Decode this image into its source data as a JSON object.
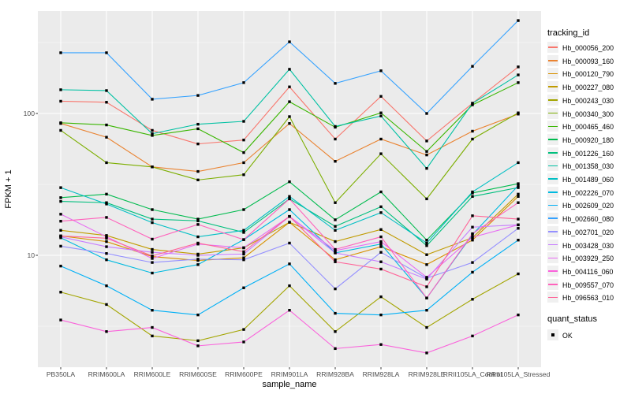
{
  "chart_data": {
    "type": "line",
    "x_title": "sample_name",
    "y_title": "FPKM + 1",
    "y_scale": "log10",
    "y_ticks": [
      100,
      10
    ],
    "y_minor_breaks": [
      316.23,
      31.62,
      3.1623
    ],
    "ylim": [
      1.45,
      550
    ],
    "grid": true,
    "panel_bg": "#EBEBEB",
    "grid_color": "#FFFFFF",
    "point_color": "#000000",
    "legend_title": "tracking_id",
    "legend_position": "right",
    "quant_legend": {
      "title": "quant_status",
      "label": "OK"
    },
    "categories": [
      "PB350LA",
      "RRIM600LA",
      "RRIM600LE",
      "RRIM600SE",
      "RRIM600PE",
      "RRIM901LA",
      "RRIM928BA",
      "RRIM928LA",
      "RRIM928LE",
      "RRII105LA_Control",
      "RRII105LA_Stressed"
    ],
    "series": [
      {
        "name": "Hb_000056_200",
        "color": "#F8766D",
        "values": [
          122,
          120,
          76,
          61,
          65,
          154,
          66,
          132,
          64,
          118,
          213
        ]
      },
      {
        "name": "Hb_000093_160",
        "color": "#EA8331",
        "values": [
          85,
          68,
          42,
          39,
          45,
          85,
          46,
          66,
          51,
          75,
          99
        ]
      },
      {
        "name": "Hb_000120_790",
        "color": "#D89000",
        "values": [
          13.7,
          12.5,
          9.8,
          9.2,
          9.6,
          17.1,
          9.3,
          11.5,
          8.6,
          12.8,
          26
        ]
      },
      {
        "name": "Hb_000227_080",
        "color": "#C09B00",
        "values": [
          15,
          13.8,
          11,
          10.2,
          11.3,
          17.1,
          12.5,
          15.2,
          10.1,
          13.3,
          27
        ]
      },
      {
        "name": "Hb_000243_030",
        "color": "#A3A500",
        "values": [
          5.5,
          4.5,
          2.7,
          2.5,
          3.0,
          6.1,
          2.9,
          5.1,
          3.1,
          4.9,
          7.4
        ]
      },
      {
        "name": "Hb_000340_300",
        "color": "#7CAE00",
        "values": [
          76,
          45,
          42,
          34,
          37,
          95,
          23.5,
          52,
          25,
          66,
          101
        ]
      },
      {
        "name": "Hb_000465_460",
        "color": "#39B600",
        "values": [
          86,
          83,
          70,
          78,
          53,
          121,
          80,
          101,
          54,
          115,
          165
        ]
      },
      {
        "name": "Hb_000920_180",
        "color": "#00BB4E",
        "values": [
          25.5,
          27,
          21,
          18,
          21,
          33,
          17.8,
          28,
          12.8,
          27.5,
          32
        ]
      },
      {
        "name": "Hb_001226_160",
        "color": "#00BF7D",
        "values": [
          24,
          23.5,
          18,
          17.5,
          14.5,
          25,
          16,
          22,
          11.7,
          26,
          30
        ]
      },
      {
        "name": "Hb_001358_030",
        "color": "#00C1A3",
        "values": [
          147,
          145,
          72,
          84,
          88,
          205,
          81,
          96,
          41,
          118,
          187
        ]
      },
      {
        "name": "Hb_001489_060",
        "color": "#00BFC4",
        "values": [
          30,
          23,
          17,
          13.5,
          15,
          26,
          15,
          20,
          12.2,
          28,
          45
        ]
      },
      {
        "name": "Hb_002226_070",
        "color": "#00BAE0",
        "values": [
          13.3,
          9.3,
          7.5,
          8.6,
          12.9,
          21,
          10.4,
          12,
          5.0,
          14,
          31
        ]
      },
      {
        "name": "Hb_002609_020",
        "color": "#00B0F6",
        "values": [
          8.4,
          6.1,
          4.1,
          3.8,
          5.9,
          8.7,
          3.9,
          3.8,
          4.1,
          7.6,
          12.8
        ]
      },
      {
        "name": "Hb_002660_080",
        "color": "#35A2FF",
        "values": [
          268,
          268,
          126,
          134,
          165,
          320,
          163,
          200,
          100,
          215,
          452
        ]
      },
      {
        "name": "Hb_002701_020",
        "color": "#9590FF",
        "values": [
          11.6,
          10.3,
          8.9,
          9.4,
          9.3,
          12.2,
          5.8,
          10.5,
          6.9,
          8.9,
          15.5
        ]
      },
      {
        "name": "Hb_003428_030",
        "color": "#C77CFF",
        "values": [
          13.5,
          11.5,
          10.5,
          10,
          10.2,
          18.8,
          10.4,
          9.0,
          6.8,
          15.8,
          16.4
        ]
      },
      {
        "name": "Hb_003929_250",
        "color": "#E76BF3",
        "values": [
          19.5,
          13.5,
          9.5,
          12,
          11.3,
          18.8,
          10.8,
          12.5,
          7.0,
          13.4,
          16.4
        ]
      },
      {
        "name": "Hb_004116_060",
        "color": "#FA62DB",
        "values": [
          3.5,
          2.9,
          3.1,
          2.3,
          2.45,
          4.1,
          2.2,
          2.35,
          2.05,
          2.7,
          3.8
        ]
      },
      {
        "name": "Hb_009557_070",
        "color": "#FF62BC",
        "values": [
          17.4,
          18.5,
          13,
          16.5,
          12.9,
          25,
          11,
          13.5,
          5.0,
          14.2,
          23.5
        ]
      },
      {
        "name": "Hb_096563_010",
        "color": "#FF6599",
        "values": [
          13.7,
          13.2,
          9.9,
          12.2,
          10.6,
          18.8,
          9.0,
          8.0,
          6.0,
          19,
          18
        ]
      }
    ]
  }
}
